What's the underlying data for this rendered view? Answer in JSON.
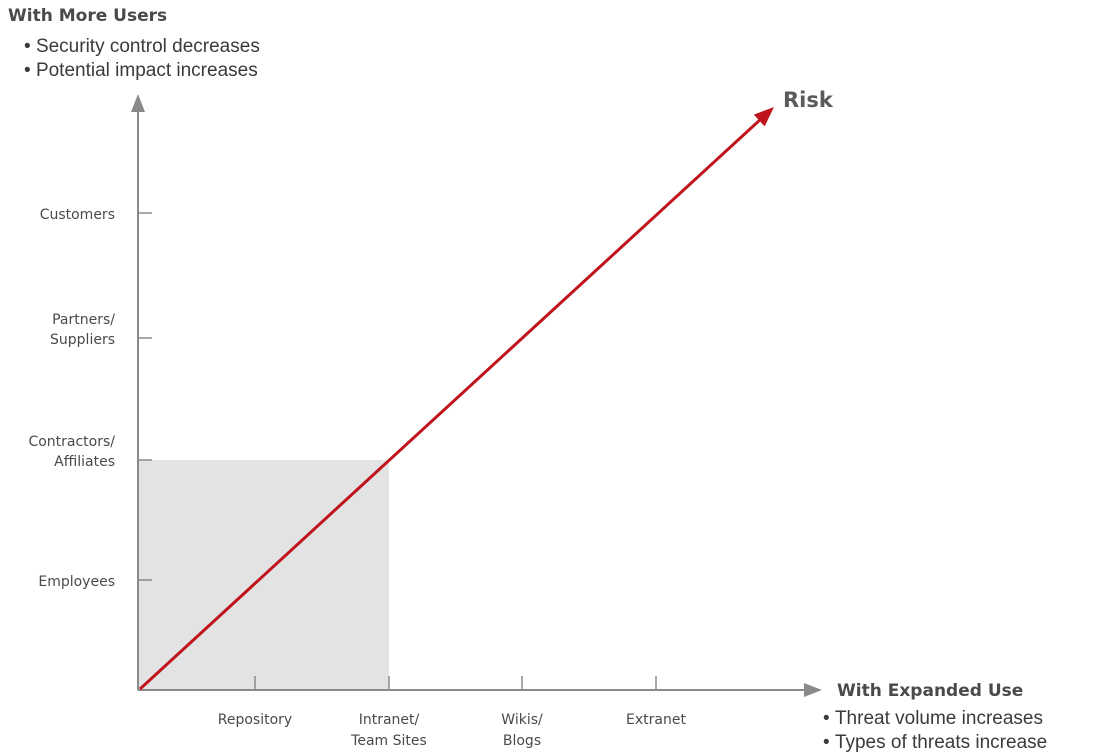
{
  "y_axis": {
    "heading": "With More Users",
    "bullets": [
      "Security control decreases",
      "Potential impact increases"
    ],
    "categories": [
      {
        "lines": [
          "Employees"
        ]
      },
      {
        "lines": [
          "Contractors/",
          "Affiliates"
        ]
      },
      {
        "lines": [
          "Partners/",
          "Suppliers"
        ]
      },
      {
        "lines": [
          "Customers"
        ]
      }
    ]
  },
  "x_axis": {
    "heading": "With Expanded Use",
    "bullets": [
      "Threat volume increases",
      "Types of threats increase"
    ],
    "categories": [
      {
        "lines": [
          "Repository"
        ]
      },
      {
        "lines": [
          "Intranet/",
          "Team Sites"
        ]
      },
      {
        "lines": [
          "Wikis/",
          "Blogs"
        ]
      },
      {
        "lines": [
          "Extranet"
        ]
      }
    ]
  },
  "risk_label": "Risk",
  "shaded_region": {
    "x_extent_category": 2,
    "y_extent_category": 2
  },
  "colors": {
    "risk_line": "#c0141c",
    "axis": "#8a8a8a",
    "shaded": "#e3e3e4",
    "tick_label": "#4a4a4a",
    "heading": "#4a4a4a"
  }
}
